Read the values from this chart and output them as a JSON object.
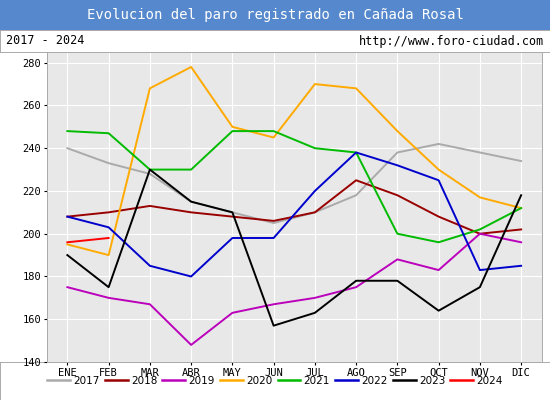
{
  "title": "Evolucion del paro registrado en Cañada Rosal",
  "subtitle_left": "2017 - 2024",
  "subtitle_right": "http://www.foro-ciudad.com",
  "months": [
    "ENE",
    "FEB",
    "MAR",
    "ABR",
    "MAY",
    "JUN",
    "JUL",
    "AGO",
    "SEP",
    "OCT",
    "NOV",
    "DIC"
  ],
  "ylim": [
    140,
    285
  ],
  "yticks": [
    140,
    160,
    180,
    200,
    220,
    240,
    260,
    280
  ],
  "series": {
    "2017": {
      "color": "#aaaaaa",
      "values": [
        240,
        233,
        228,
        215,
        210,
        205,
        210,
        218,
        238,
        242,
        238,
        234
      ]
    },
    "2018": {
      "color": "#990000",
      "values": [
        208,
        210,
        213,
        210,
        208,
        206,
        210,
        225,
        218,
        208,
        200,
        202
      ]
    },
    "2019": {
      "color": "#bb00bb",
      "values": [
        175,
        170,
        167,
        148,
        163,
        167,
        170,
        175,
        188,
        183,
        200,
        196
      ]
    },
    "2020": {
      "color": "#ffaa00",
      "values": [
        195,
        190,
        268,
        278,
        250,
        245,
        270,
        268,
        248,
        230,
        217,
        212
      ]
    },
    "2021": {
      "color": "#00bb00",
      "values": [
        248,
        247,
        230,
        230,
        248,
        248,
        240,
        238,
        200,
        196,
        202,
        212
      ]
    },
    "2022": {
      "color": "#0000cc",
      "values": [
        208,
        203,
        185,
        180,
        198,
        198,
        220,
        238,
        232,
        225,
        183,
        185
      ]
    },
    "2023": {
      "color": "#000000",
      "values": [
        190,
        175,
        230,
        215,
        210,
        157,
        163,
        178,
        178,
        164,
        175,
        218
      ]
    },
    "2024": {
      "color": "#ff0000",
      "values": [
        196,
        198,
        null,
        null,
        null,
        null,
        null,
        null,
        null,
        null,
        null,
        null
      ]
    }
  },
  "title_bg": "#5588cc",
  "title_color": "white",
  "subtitle_color": "black",
  "plot_bg": "#e8e8e8",
  "grid_color": "white",
  "border_color": "#aaaaaa"
}
